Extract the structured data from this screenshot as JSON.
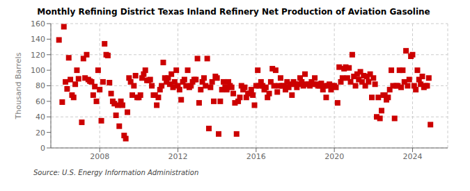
{
  "chart_data": {
    "type": "scatter",
    "title": "Monthly Refining District Texas Inland Refinery Net Production of Aviation Gasoline",
    "ylabel": "Thousand Barrels",
    "annotation": "Source: U.S. Energy Information Administration",
    "color": "#cc0000",
    "marker": "square",
    "grid": true,
    "xlim": [
      2005.5,
      2025.8
    ],
    "xticks": [
      2008,
      2012,
      2016,
      2020,
      2024
    ],
    "ylim": [
      0,
      160
    ],
    "yticks": [
      0,
      20,
      40,
      60,
      80,
      100,
      120,
      140,
      160
    ],
    "x": [
      2005.917,
      2006.083,
      2006.167,
      2006.25,
      2006.333,
      2006.417,
      2006.5,
      2006.583,
      2006.667,
      2006.75,
      2006.833,
      2006.917,
      2007.083,
      2007.167,
      2007.25,
      2007.333,
      2007.417,
      2007.5,
      2007.583,
      2007.667,
      2007.75,
      2007.833,
      2007.917,
      2008.0,
      2008.083,
      2008.167,
      2008.25,
      2008.333,
      2008.417,
      2008.5,
      2008.583,
      2008.667,
      2008.75,
      2008.833,
      2008.917,
      2009.0,
      2009.083,
      2009.167,
      2009.25,
      2009.333,
      2009.417,
      2009.5,
      2009.583,
      2009.667,
      2009.75,
      2009.833,
      2009.917,
      2010.0,
      2010.083,
      2010.167,
      2010.25,
      2010.333,
      2010.417,
      2010.5,
      2010.583,
      2010.667,
      2010.75,
      2010.833,
      2010.917,
      2011.0,
      2011.083,
      2011.167,
      2011.25,
      2011.333,
      2011.417,
      2011.5,
      2011.583,
      2011.667,
      2011.75,
      2011.833,
      2011.917,
      2012.0,
      2012.083,
      2012.167,
      2012.25,
      2012.333,
      2012.417,
      2012.5,
      2012.583,
      2012.667,
      2012.75,
      2012.833,
      2012.917,
      2013.0,
      2013.083,
      2013.167,
      2013.25,
      2013.333,
      2013.417,
      2013.5,
      2013.583,
      2013.667,
      2013.75,
      2013.833,
      2013.917,
      2014.0,
      2014.083,
      2014.167,
      2014.25,
      2014.333,
      2014.417,
      2014.5,
      2014.583,
      2014.667,
      2014.75,
      2014.833,
      2014.917,
      2015.0,
      2015.083,
      2015.167,
      2015.25,
      2015.333,
      2015.417,
      2015.5,
      2015.583,
      2015.667,
      2015.75,
      2015.833,
      2015.917,
      2016.0,
      2016.083,
      2016.167,
      2016.25,
      2016.333,
      2016.417,
      2016.5,
      2016.583,
      2016.667,
      2016.75,
      2016.833,
      2016.917,
      2017.0,
      2017.083,
      2017.167,
      2017.25,
      2017.333,
      2017.417,
      2017.5,
      2017.583,
      2017.667,
      2017.75,
      2017.833,
      2017.917,
      2018.0,
      2018.083,
      2018.167,
      2018.25,
      2018.333,
      2018.417,
      2018.5,
      2018.583,
      2018.667,
      2018.75,
      2018.833,
      2018.917,
      2019.0,
      2019.083,
      2019.167,
      2019.25,
      2019.333,
      2019.417,
      2019.5,
      2019.583,
      2019.667,
      2019.75,
      2019.833,
      2019.917,
      2020.0,
      2020.083,
      2020.167,
      2020.25,
      2020.333,
      2020.417,
      2020.5,
      2020.583,
      2020.667,
      2020.75,
      2020.833,
      2020.917,
      2021.0,
      2021.083,
      2021.167,
      2021.25,
      2021.333,
      2021.417,
      2021.5,
      2021.583,
      2021.667,
      2021.75,
      2021.833,
      2021.917,
      2022.0,
      2022.083,
      2022.167,
      2022.25,
      2022.333,
      2022.417,
      2022.5,
      2022.583,
      2022.667,
      2022.75,
      2022.833,
      2022.917,
      2023.0,
      2023.083,
      2023.167,
      2023.25,
      2023.333,
      2023.417,
      2023.5,
      2023.583,
      2023.667,
      2023.75,
      2023.833,
      2023.917,
      2024.0,
      2024.083,
      2024.167,
      2024.25,
      2024.333,
      2024.417,
      2024.5,
      2024.583,
      2024.667,
      2024.75,
      2024.833,
      2024.917
    ],
    "values": [
      139,
      59,
      156,
      85,
      76,
      116,
      88,
      68,
      65,
      82,
      100,
      89,
      33,
      115,
      90,
      120,
      88,
      86,
      85,
      68,
      79,
      60,
      100,
      75,
      35,
      85,
      134,
      120,
      119,
      84,
      70,
      60,
      57,
      42,
      55,
      28,
      60,
      55,
      16,
      12,
      46,
      90,
      85,
      68,
      80,
      93,
      65,
      65,
      68,
      90,
      95,
      100,
      87,
      87,
      88,
      80,
      68,
      68,
      55,
      65,
      75,
      80,
      110,
      90,
      85,
      90,
      82,
      95,
      78,
      85,
      100,
      80,
      75,
      62,
      85,
      88,
      80,
      100,
      78,
      80,
      85,
      88,
      88,
      115,
      58,
      75,
      85,
      90,
      80,
      115,
      25,
      78,
      85,
      60,
      92,
      90,
      18,
      60,
      75,
      85,
      78,
      75,
      85,
      80,
      78,
      70,
      58,
      18,
      60,
      65,
      80,
      75,
      78,
      65,
      70,
      70,
      75,
      68,
      55,
      80,
      100,
      80,
      85,
      80,
      75,
      78,
      65,
      70,
      85,
      102,
      80,
      100,
      72,
      80,
      90,
      80,
      80,
      75,
      85,
      78,
      82,
      68,
      85,
      82,
      78,
      82,
      90,
      85,
      80,
      95,
      82,
      82,
      80,
      85,
      82,
      90,
      82,
      80,
      80,
      83,
      75,
      80,
      65,
      80,
      82,
      75,
      80,
      80,
      78,
      58,
      104,
      85,
      90,
      102,
      104,
      90,
      103,
      85,
      120,
      92,
      80,
      95,
      88,
      98,
      85,
      93,
      80,
      92,
      85,
      95,
      65,
      90,
      82,
      40,
      65,
      38,
      48,
      68,
      68,
      62,
      65,
      75,
      100,
      80,
      38,
      80,
      80,
      100,
      78,
      100,
      85,
      125,
      80,
      88,
      118,
      120,
      80,
      75,
      100,
      88,
      82,
      92,
      78,
      80,
      80,
      90,
      30
    ]
  }
}
